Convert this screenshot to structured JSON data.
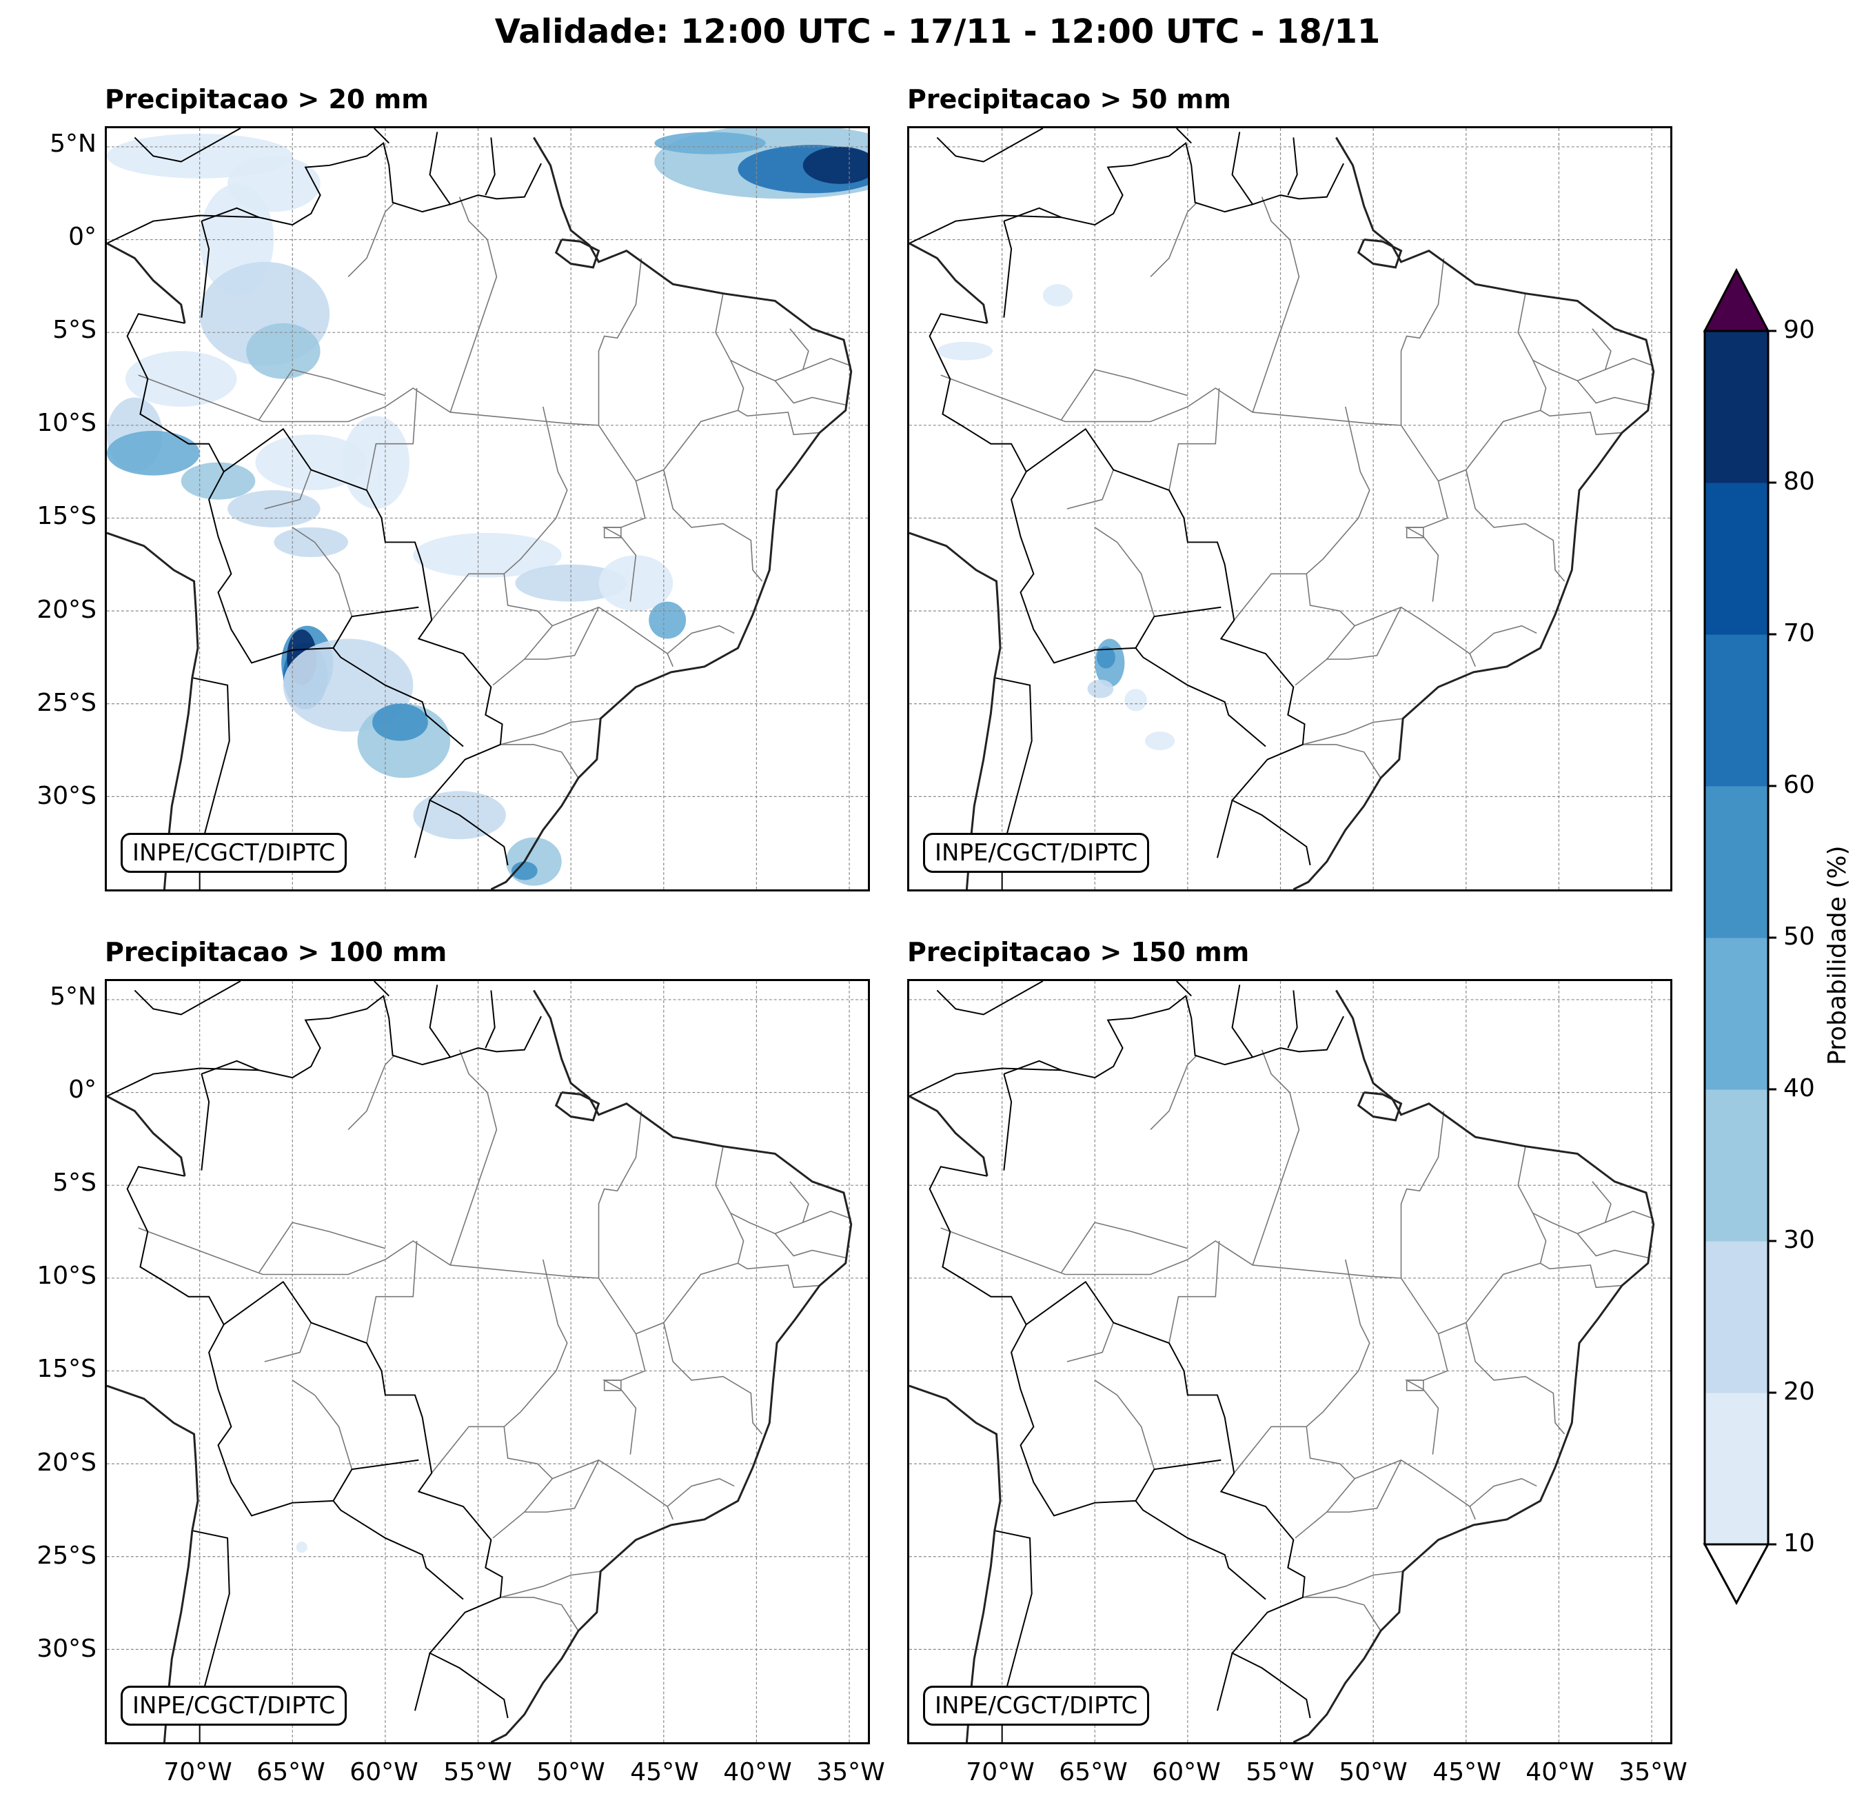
{
  "title": "Validade: 12:00 UTC - 17/11 - 12:00 UTC - 18/11",
  "panels": [
    {
      "title": "Precipitacao > 20 mm",
      "credit": "INPE/CGCT/DIPTC"
    },
    {
      "title": "Precipitacao > 50 mm",
      "credit": "INPE/CGCT/DIPTC"
    },
    {
      "title": "Precipitacao > 100 mm",
      "credit": "INPE/CGCT/DIPTC"
    },
    {
      "title": "Precipitacao > 150 mm",
      "credit": "INPE/CGCT/DIPTC"
    }
  ],
  "lat_ticks": [
    "5°N",
    "0°",
    "5°S",
    "10°S",
    "15°S",
    "20°S",
    "25°S",
    "30°S"
  ],
  "lon_ticks": [
    "70°W",
    "65°W",
    "60°W",
    "55°W",
    "50°W",
    "45°W",
    "40°W",
    "35°W"
  ],
  "colorbar": {
    "label": "Probabilidade (%)",
    "ticks": [
      "10",
      "20",
      "30",
      "40",
      "50",
      "60",
      "70",
      "80",
      "90"
    ],
    "colors": [
      "#deebf7",
      "#c6dbef",
      "#9ecae1",
      "#6baed6",
      "#4292c6",
      "#2171b5",
      "#08519c",
      "#08306b"
    ],
    "over_color": "#4a0048",
    "under_color": "#ffffff"
  },
  "map_extent": {
    "lon_min": -75,
    "lon_max": -34,
    "lat_min": -35,
    "lat_max": 6
  }
}
